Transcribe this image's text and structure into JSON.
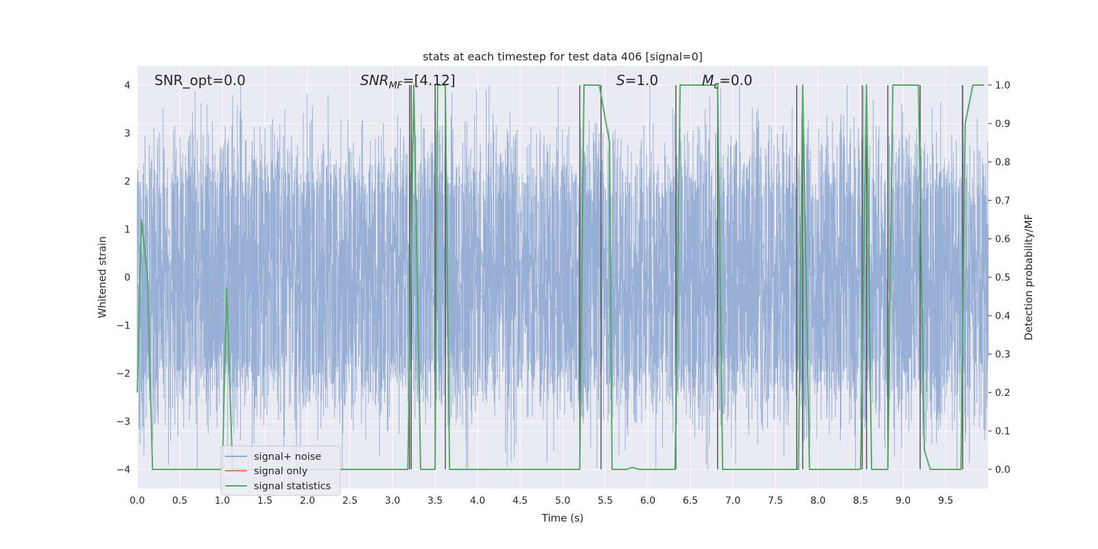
{
  "chart_data": {
    "type": "line",
    "title": "stats at each timestep for test data 406 [signal=0]",
    "xlabel": "Time (s)",
    "ylabel": "Whitened strain",
    "ylabel_right": "Detection probability/MF",
    "xlim": [
      0.0,
      10.0
    ],
    "ylim": [
      -4.4,
      4.4
    ],
    "ylim_right": [
      -0.05,
      1.05
    ],
    "xticks": [
      "0.0",
      "0.5",
      "1.0",
      "1.5",
      "2.0",
      "2.5",
      "3.0",
      "3.5",
      "4.0",
      "4.5",
      "5.0",
      "5.5",
      "6.0",
      "6.5",
      "7.0",
      "7.5",
      "8.0",
      "8.5",
      "9.0",
      "9.5"
    ],
    "yticks": [
      "4",
      "3",
      "2",
      "1",
      "0",
      "−1",
      "−2",
      "−3",
      "−4"
    ],
    "yticks_right": [
      "1.0",
      "0.9",
      "0.8",
      "0.7",
      "0.6",
      "0.5",
      "0.4",
      "0.3",
      "0.2",
      "0.1",
      "0.0"
    ],
    "grid": true,
    "legend_position": "lower-left",
    "annotations": {
      "snr_opt": "SNR_opt=0.0",
      "snr_mf_base": "SNR",
      "snr_mf_sub": "MF",
      "snr_mf_value": "=[4.12]",
      "s_label": "S",
      "s_value": "=1.0",
      "mc_label": "M",
      "mc_sub": "c",
      "mc_value": "=0.0"
    },
    "series": [
      {
        "name": "signal+ noise",
        "color": "#8fa8d1",
        "description_values": "Gaussian whitened noise, mostly within about ±1.6, with spikes up to about ±4.0"
      },
      {
        "name": "signal only",
        "color": "#dd8452",
        "values": "zero signal (flat at 0)"
      },
      {
        "name": "signal statistics",
        "color": "#55a868",
        "x": [
          0.0,
          0.05,
          0.12,
          0.18,
          1.0,
          1.05,
          1.12,
          3.18,
          3.25,
          3.33,
          3.5,
          3.53,
          3.62,
          3.67,
          5.2,
          5.25,
          5.43,
          5.55,
          5.58,
          5.75,
          5.82,
          5.9,
          6.32,
          6.38,
          6.82,
          6.88,
          7.77,
          7.82,
          7.9,
          8.5,
          8.57,
          8.63,
          8.82,
          8.88,
          9.18,
          9.25,
          9.32,
          9.68,
          9.73,
          9.82,
          9.95
        ],
        "y": [
          0.2,
          0.65,
          0.5,
          0.0,
          0.0,
          0.47,
          0.0,
          0.0,
          1.0,
          0.0,
          0.0,
          1.0,
          1.0,
          0.0,
          0.0,
          1.0,
          1.0,
          0.85,
          0.0,
          0.0,
          0.005,
          0.0,
          0.0,
          1.0,
          1.0,
          0.0,
          0.0,
          1.0,
          0.0,
          0.0,
          1.0,
          0.0,
          0.0,
          1.0,
          1.0,
          0.05,
          0.0,
          0.0,
          0.9,
          1.0,
          1.0
        ]
      }
    ],
    "threshold_lines_x": [
      3.2,
      3.22,
      3.5,
      3.62,
      5.2,
      5.45,
      6.33,
      6.82,
      7.75,
      7.82,
      8.52,
      8.57,
      8.82,
      9.2,
      9.7
    ],
    "threshold_line_color": "#555555"
  },
  "colors": {
    "plot_bg": "#eaeaf2",
    "grid": "#ffffff",
    "legend_bg": "#eaeaf2",
    "legend_border": "#cccccc"
  }
}
